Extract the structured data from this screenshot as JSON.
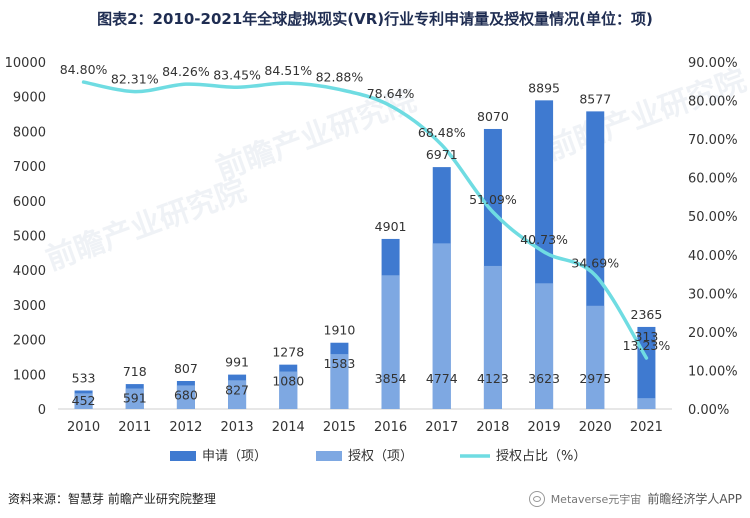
{
  "title": "图表2：2010-2021年全球虚拟现实(VR)行业专利申请量及授权量情况(单位：项)",
  "source": "资料来源：智慧芽 前瞻产业研究院整理",
  "credit": "前瞻经济学人APP",
  "account": "Metaverse元宇宙",
  "watermark": "前瞻产业研究院",
  "colors": {
    "apply": "#3f7ad0",
    "grant": "#7ea8e2",
    "ratio": "#6fdce2"
  },
  "chart_data": {
    "type": "bar+line",
    "categories": [
      "2010",
      "2011",
      "2012",
      "2013",
      "2014",
      "2015",
      "2016",
      "2017",
      "2018",
      "2019",
      "2020",
      "2021"
    ],
    "series": [
      {
        "name": "申请（项）",
        "type": "bar",
        "axis": "left",
        "values": [
          533,
          718,
          807,
          991,
          1278,
          1910,
          4901,
          6971,
          8070,
          8895,
          8577,
          2365
        ]
      },
      {
        "name": "授权（项）",
        "type": "bar",
        "axis": "left",
        "values": [
          452,
          591,
          680,
          827,
          1080,
          1583,
          3854,
          4774,
          4123,
          3623,
          2975,
          313
        ]
      },
      {
        "name": "授权占比（%）",
        "type": "line",
        "axis": "right",
        "values": [
          84.8,
          82.31,
          84.26,
          83.45,
          84.51,
          82.88,
          78.64,
          68.48,
          51.09,
          40.73,
          34.69,
          13.23
        ]
      }
    ],
    "ratio_labels": [
      "84.80%",
      "82.31%",
      "84.26%",
      "83.45%",
      "84.51%",
      "82.88%",
      "78.64%",
      "68.48%",
      "51.09%",
      "40.73%",
      "34.69%",
      "13.23%"
    ],
    "y_left": {
      "min": 0,
      "max": 10000,
      "ticks": [
        "0",
        "1000",
        "2000",
        "3000",
        "4000",
        "5000",
        "6000",
        "7000",
        "8000",
        "9000",
        "10000"
      ]
    },
    "y_right": {
      "min": 0,
      "max": 90,
      "ticks": [
        "0.00%",
        "10.00%",
        "20.00%",
        "30.00%",
        "40.00%",
        "50.00%",
        "60.00%",
        "70.00%",
        "80.00%",
        "90.00%"
      ]
    },
    "legend": [
      "申请（项）",
      "授权（项）",
      "授权占比（%）"
    ]
  }
}
